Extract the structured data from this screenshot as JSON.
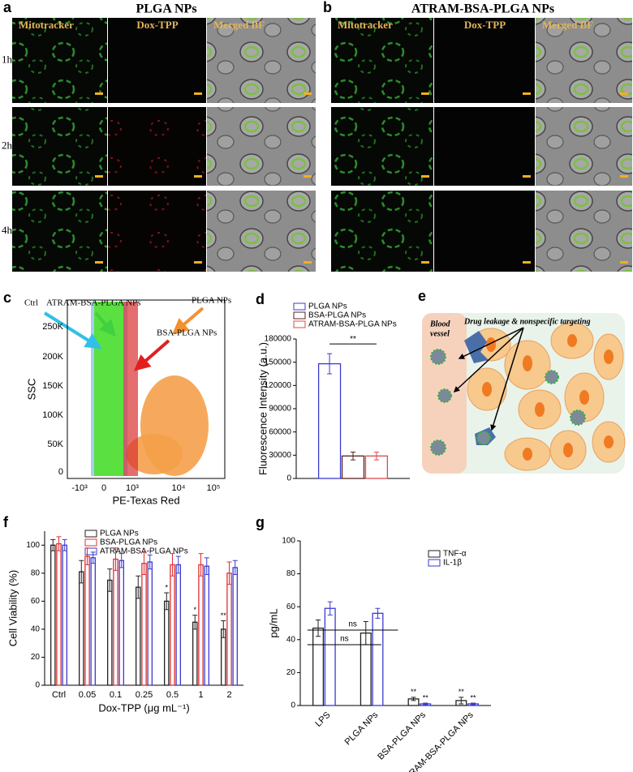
{
  "panel_a": {
    "letter": "a",
    "title": "PLGA NPs",
    "columns": [
      "Mitotracker",
      "Dox-TPP",
      "Merged BF"
    ],
    "rows": [
      "1h",
      "2h",
      "4h"
    ]
  },
  "panel_b": {
    "letter": "b",
    "title": "ATRAM-BSA-PLGA NPs",
    "columns": [
      "Mitotracker",
      "Dox-TPP",
      "Merged BF"
    ]
  },
  "panel_c": {
    "letter": "c",
    "xlabel": "PE-Texas Red",
    "ylabel": "SSC",
    "xtick_labels": [
      "-10³",
      "0",
      "10³",
      "10⁴",
      "10⁵"
    ],
    "ytick_labels": [
      "0",
      "50K",
      "100K",
      "150K",
      "200K",
      "250K"
    ],
    "annotations": [
      "Ctrl",
      "ATRAM-BSA-PLGA NPs",
      "BSA-PLGA NPs",
      "PLGA NPs"
    ]
  },
  "panel_e": {
    "letter": "e",
    "blood_vessel_lines": [
      "Blood",
      "vessel"
    ],
    "caption": "Drug leakage & nonspecific targeting"
  },
  "chart_data": [
    {
      "letter": "d",
      "type": "bar",
      "ylabel": "Fluorescence Intensity (a.u.)",
      "series": [
        {
          "name": "PLGA NPs",
          "color": "#3a3ad0",
          "values": [
            148000
          ],
          "errors": [
            13000
          ]
        },
        {
          "name": "BSA-PLGA NPs",
          "color": "#5a2020",
          "values": [
            29000
          ],
          "errors": [
            5000
          ]
        },
        {
          "name": "ATRAM-BSA-PLGA NPs",
          "color": "#e04848",
          "values": [
            29000
          ],
          "errors": [
            5000
          ]
        }
      ],
      "ylim": [
        0,
        180000
      ],
      "yticks": [
        0,
        30000,
        60000,
        90000,
        120000,
        150000,
        180000
      ],
      "significance": "**"
    },
    {
      "letter": "f",
      "type": "grouped_bar",
      "xlabel": "Dox-TPP (μg mL⁻¹)",
      "ylabel": "Cell Viability (%)",
      "categories": [
        "Ctrl",
        "0.05",
        "0.1",
        "0.25",
        "0.5",
        "1",
        "2"
      ],
      "series": [
        {
          "name": "PLGA NPs",
          "color": "#222222",
          "values": [
            100,
            81,
            75,
            70,
            60,
            45,
            40
          ],
          "errors": [
            4,
            8,
            8,
            8,
            6,
            5,
            6
          ],
          "significance": [
            null,
            null,
            null,
            null,
            "*",
            "*",
            "**"
          ]
        },
        {
          "name": "BSA-PLGA NPs",
          "color": "#e03030",
          "values": [
            101,
            92,
            90,
            87,
            86,
            86,
            80
          ],
          "errors": [
            5,
            6,
            8,
            8,
            8,
            8,
            8
          ]
        },
        {
          "name": "ATRAM-BSA-PLGA NPs",
          "color": "#3a3ad0",
          "values": [
            100,
            91,
            89,
            88,
            86,
            85,
            84
          ],
          "errors": [
            4,
            4,
            5,
            5,
            6,
            6,
            5
          ]
        }
      ],
      "ylim": [
        0,
        110
      ],
      "yticks": [
        0,
        20,
        40,
        60,
        80,
        100
      ]
    },
    {
      "letter": "g",
      "type": "grouped_bar",
      "ylabel": "pg/mL",
      "categories": [
        "LPS",
        "PLGA NPs",
        "BSA-PLGA NPs",
        "ATRAM-BSA-PLGA NPs"
      ],
      "series": [
        {
          "name": "TNF-α",
          "color": "#222222",
          "values": [
            47,
            44,
            4,
            3
          ],
          "errors": [
            5,
            7,
            1,
            2
          ],
          "significance": [
            null,
            null,
            "**",
            "**"
          ]
        },
        {
          "name": "IL-1β",
          "color": "#3a3ad0",
          "values": [
            59,
            56,
            1,
            1
          ],
          "errors": [
            4,
            3,
            0.5,
            0.5
          ],
          "significance": [
            null,
            null,
            "**",
            "**"
          ]
        }
      ],
      "ylim": [
        0,
        100
      ],
      "yticks": [
        0,
        20,
        40,
        60,
        80,
        100
      ],
      "brackets": [
        "ns",
        "ns"
      ]
    }
  ]
}
